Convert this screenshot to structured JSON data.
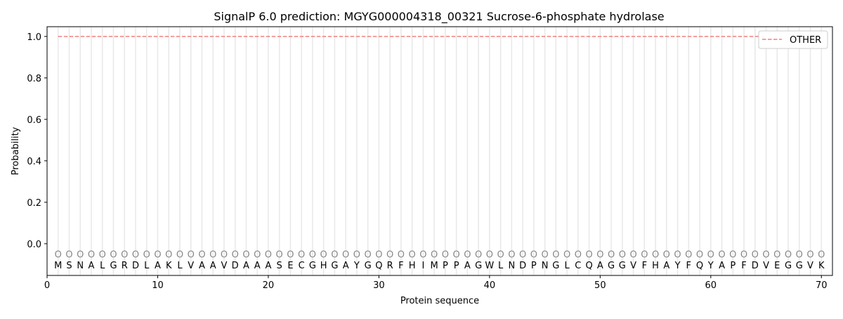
{
  "chart_data": {
    "type": "line",
    "title": "SignalP 6.0 prediction: MGYG000004318_00321 Sucrose-6-phosphate hydrolase",
    "xlabel": "Protein sequence",
    "ylabel": "Probability",
    "xlim": [
      0,
      71
    ],
    "ylim": [
      -0.153,
      1.047
    ],
    "xticks": [
      0,
      10,
      20,
      30,
      40,
      50,
      60,
      70
    ],
    "yticks": [
      "0.0",
      "0.2",
      "0.4",
      "0.6",
      "0.8",
      "1.0"
    ],
    "sequence": "MSNALGRDLAKLVAAVDAAASECGHGAYGQRFHIMPPAGWLNDPNGLCQAGGVFHAYFQYAPFDVEGGVK",
    "position_label": "O",
    "legend_position": "top-right",
    "series": [
      {
        "name": "OTHER",
        "color": "#f08080",
        "style": "dashed",
        "x_range": [
          1,
          70
        ],
        "value": 1.0
      }
    ]
  }
}
